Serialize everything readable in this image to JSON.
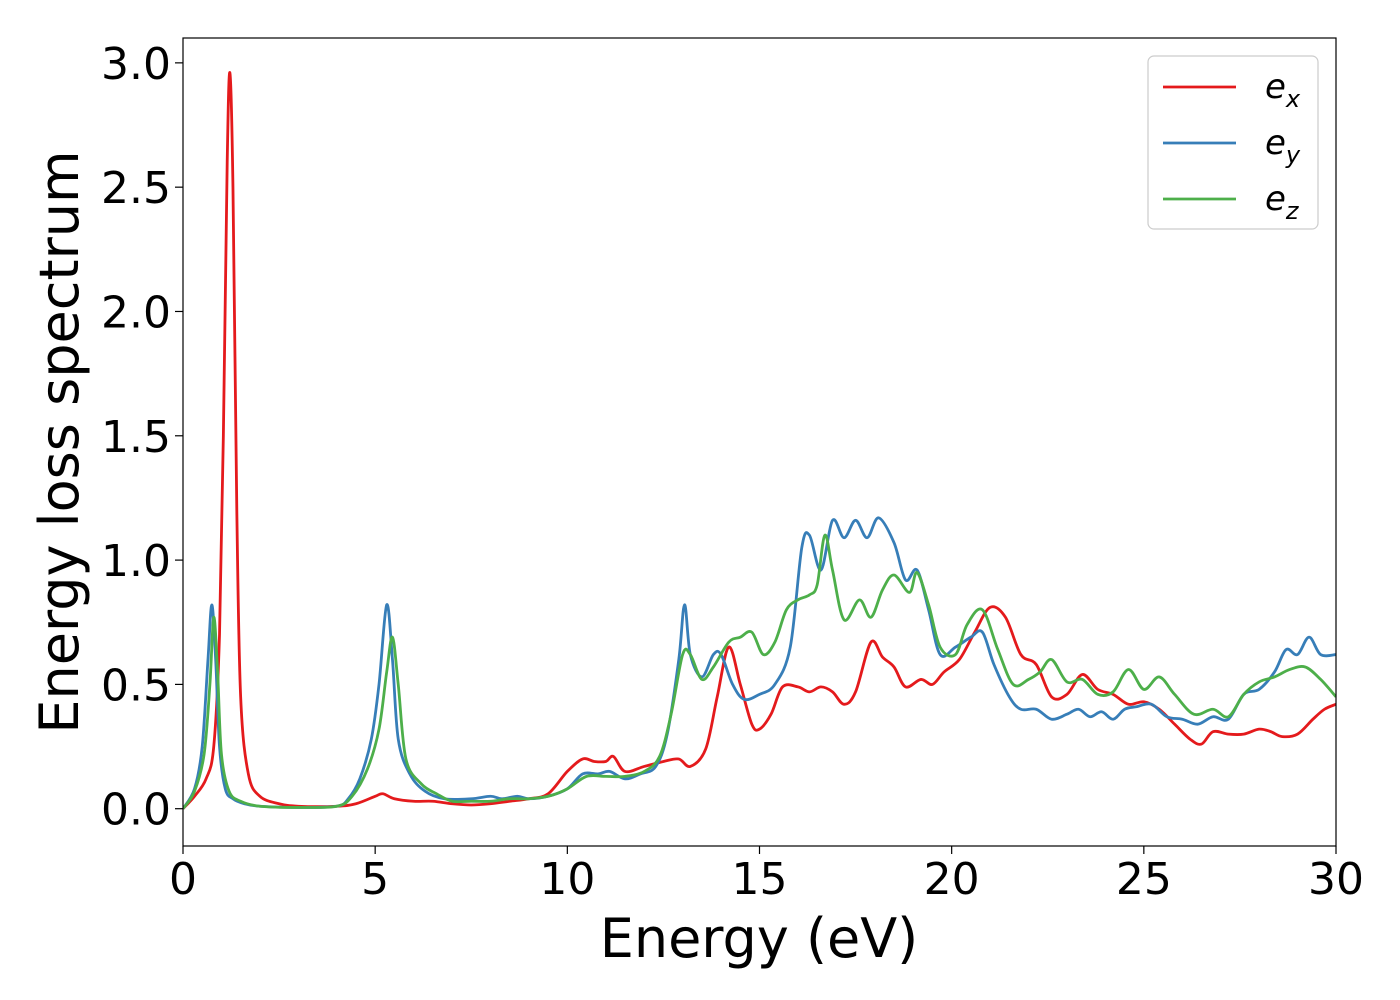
{
  "chart_data": {
    "type": "line",
    "xlabel": "Energy (eV)",
    "ylabel": "Energy loss spectrum",
    "xlim": [
      0,
      30
    ],
    "ylim": [
      -0.15,
      3.1
    ],
    "xticks": [
      0,
      5,
      10,
      15,
      20,
      25,
      30
    ],
    "xtick_labels": [
      "0",
      "5",
      "10",
      "15",
      "20",
      "25",
      "30"
    ],
    "yticks": [
      0.0,
      0.5,
      1.0,
      1.5,
      2.0,
      2.5,
      3.0
    ],
    "ytick_labels": [
      "0.0",
      "0.5",
      "1.0",
      "1.5",
      "2.0",
      "2.5",
      "3.0"
    ],
    "grid": false,
    "legend_position": "top-right",
    "series": [
      {
        "name": "e",
        "sub": "x",
        "color": "#e41a1c",
        "points": [
          [
            0,
            0.0
          ],
          [
            0.3,
            0.05
          ],
          [
            0.6,
            0.12
          ],
          [
            0.8,
            0.25
          ],
          [
            0.95,
            0.7
          ],
          [
            1.05,
            1.5
          ],
          [
            1.15,
            2.6
          ],
          [
            1.22,
            2.96
          ],
          [
            1.3,
            2.5
          ],
          [
            1.4,
            1.2
          ],
          [
            1.5,
            0.45
          ],
          [
            1.7,
            0.14
          ],
          [
            2.0,
            0.05
          ],
          [
            2.5,
            0.02
          ],
          [
            3.0,
            0.01
          ],
          [
            4.0,
            0.01
          ],
          [
            4.5,
            0.02
          ],
          [
            5.0,
            0.05
          ],
          [
            5.2,
            0.06
          ],
          [
            5.5,
            0.04
          ],
          [
            6.0,
            0.03
          ],
          [
            6.5,
            0.03
          ],
          [
            7.0,
            0.02
          ],
          [
            7.5,
            0.015
          ],
          [
            8.0,
            0.02
          ],
          [
            8.5,
            0.03
          ],
          [
            9.0,
            0.04
          ],
          [
            9.5,
            0.06
          ],
          [
            10.0,
            0.15
          ],
          [
            10.4,
            0.2
          ],
          [
            10.7,
            0.19
          ],
          [
            11.0,
            0.19
          ],
          [
            11.2,
            0.21
          ],
          [
            11.5,
            0.15
          ],
          [
            12.0,
            0.17
          ],
          [
            12.5,
            0.19
          ],
          [
            12.9,
            0.2
          ],
          [
            13.2,
            0.17
          ],
          [
            13.6,
            0.24
          ],
          [
            13.9,
            0.45
          ],
          [
            14.2,
            0.65
          ],
          [
            14.5,
            0.5
          ],
          [
            14.8,
            0.34
          ],
          [
            15.0,
            0.32
          ],
          [
            15.3,
            0.38
          ],
          [
            15.6,
            0.49
          ],
          [
            16.0,
            0.49
          ],
          [
            16.3,
            0.47
          ],
          [
            16.6,
            0.49
          ],
          [
            16.9,
            0.47
          ],
          [
            17.2,
            0.42
          ],
          [
            17.5,
            0.47
          ],
          [
            17.9,
            0.67
          ],
          [
            18.2,
            0.61
          ],
          [
            18.5,
            0.57
          ],
          [
            18.8,
            0.49
          ],
          [
            19.2,
            0.52
          ],
          [
            19.5,
            0.5
          ],
          [
            19.8,
            0.55
          ],
          [
            20.2,
            0.6
          ],
          [
            20.6,
            0.71
          ],
          [
            21.0,
            0.81
          ],
          [
            21.4,
            0.77
          ],
          [
            21.8,
            0.62
          ],
          [
            22.2,
            0.58
          ],
          [
            22.6,
            0.45
          ],
          [
            23.0,
            0.46
          ],
          [
            23.4,
            0.54
          ],
          [
            23.8,
            0.48
          ],
          [
            24.2,
            0.46
          ],
          [
            24.6,
            0.42
          ],
          [
            25.0,
            0.43
          ],
          [
            25.4,
            0.4
          ],
          [
            25.8,
            0.34
          ],
          [
            26.2,
            0.28
          ],
          [
            26.5,
            0.26
          ],
          [
            26.8,
            0.31
          ],
          [
            27.2,
            0.3
          ],
          [
            27.6,
            0.3
          ],
          [
            28.0,
            0.32
          ],
          [
            28.3,
            0.31
          ],
          [
            28.6,
            0.29
          ],
          [
            29.0,
            0.3
          ],
          [
            29.4,
            0.36
          ],
          [
            29.7,
            0.4
          ],
          [
            30.0,
            0.42
          ]
        ]
      },
      {
        "name": "e",
        "sub": "y",
        "color": "#377eb8",
        "points": [
          [
            0,
            0.0
          ],
          [
            0.3,
            0.08
          ],
          [
            0.5,
            0.25
          ],
          [
            0.65,
            0.6
          ],
          [
            0.75,
            0.82
          ],
          [
            0.85,
            0.6
          ],
          [
            0.95,
            0.25
          ],
          [
            1.1,
            0.08
          ],
          [
            1.3,
            0.04
          ],
          [
            1.6,
            0.02
          ],
          [
            2.0,
            0.01
          ],
          [
            3.0,
            0.005
          ],
          [
            4.0,
            0.01
          ],
          [
            4.3,
            0.04
          ],
          [
            4.6,
            0.12
          ],
          [
            4.9,
            0.28
          ],
          [
            5.1,
            0.5
          ],
          [
            5.3,
            0.82
          ],
          [
            5.45,
            0.6
          ],
          [
            5.6,
            0.28
          ],
          [
            5.9,
            0.14
          ],
          [
            6.3,
            0.07
          ],
          [
            6.8,
            0.04
          ],
          [
            7.5,
            0.04
          ],
          [
            8.0,
            0.05
          ],
          [
            8.3,
            0.04
          ],
          [
            8.7,
            0.05
          ],
          [
            9.0,
            0.04
          ],
          [
            9.5,
            0.05
          ],
          [
            10.0,
            0.08
          ],
          [
            10.4,
            0.14
          ],
          [
            10.8,
            0.14
          ],
          [
            11.1,
            0.15
          ],
          [
            11.5,
            0.12
          ],
          [
            11.9,
            0.14
          ],
          [
            12.3,
            0.17
          ],
          [
            12.6,
            0.3
          ],
          [
            12.9,
            0.6
          ],
          [
            13.05,
            0.82
          ],
          [
            13.2,
            0.62
          ],
          [
            13.5,
            0.53
          ],
          [
            13.8,
            0.62
          ],
          [
            14.0,
            0.62
          ],
          [
            14.3,
            0.5
          ],
          [
            14.6,
            0.44
          ],
          [
            15.0,
            0.46
          ],
          [
            15.4,
            0.5
          ],
          [
            15.8,
            0.65
          ],
          [
            16.1,
            1.05
          ],
          [
            16.3,
            1.1
          ],
          [
            16.6,
            0.96
          ],
          [
            16.9,
            1.16
          ],
          [
            17.2,
            1.09
          ],
          [
            17.5,
            1.16
          ],
          [
            17.8,
            1.09
          ],
          [
            18.1,
            1.17
          ],
          [
            18.5,
            1.07
          ],
          [
            18.8,
            0.92
          ],
          [
            19.1,
            0.96
          ],
          [
            19.4,
            0.8
          ],
          [
            19.7,
            0.62
          ],
          [
            20.1,
            0.65
          ],
          [
            20.5,
            0.69
          ],
          [
            20.8,
            0.71
          ],
          [
            21.1,
            0.58
          ],
          [
            21.5,
            0.45
          ],
          [
            21.8,
            0.4
          ],
          [
            22.2,
            0.4
          ],
          [
            22.6,
            0.36
          ],
          [
            23.0,
            0.38
          ],
          [
            23.3,
            0.4
          ],
          [
            23.6,
            0.37
          ],
          [
            23.9,
            0.39
          ],
          [
            24.2,
            0.36
          ],
          [
            24.5,
            0.4
          ],
          [
            24.8,
            0.41
          ],
          [
            25.2,
            0.42
          ],
          [
            25.6,
            0.37
          ],
          [
            26.0,
            0.36
          ],
          [
            26.4,
            0.34
          ],
          [
            26.8,
            0.37
          ],
          [
            27.2,
            0.36
          ],
          [
            27.6,
            0.46
          ],
          [
            28.0,
            0.48
          ],
          [
            28.4,
            0.55
          ],
          [
            28.7,
            0.64
          ],
          [
            29.0,
            0.62
          ],
          [
            29.3,
            0.69
          ],
          [
            29.6,
            0.62
          ],
          [
            30.0,
            0.62
          ]
        ]
      },
      {
        "name": "e",
        "sub": "z",
        "color": "#4daf4a",
        "points": [
          [
            0,
            0.0
          ],
          [
            0.3,
            0.07
          ],
          [
            0.55,
            0.22
          ],
          [
            0.7,
            0.5
          ],
          [
            0.8,
            0.77
          ],
          [
            0.9,
            0.55
          ],
          [
            1.0,
            0.22
          ],
          [
            1.2,
            0.07
          ],
          [
            1.5,
            0.03
          ],
          [
            2.0,
            0.01
          ],
          [
            3.0,
            0.005
          ],
          [
            4.0,
            0.01
          ],
          [
            4.4,
            0.05
          ],
          [
            4.8,
            0.16
          ],
          [
            5.1,
            0.32
          ],
          [
            5.3,
            0.55
          ],
          [
            5.45,
            0.69
          ],
          [
            5.6,
            0.5
          ],
          [
            5.8,
            0.2
          ],
          [
            6.2,
            0.1
          ],
          [
            6.6,
            0.06
          ],
          [
            7.0,
            0.03
          ],
          [
            7.5,
            0.03
          ],
          [
            8.0,
            0.03
          ],
          [
            8.5,
            0.04
          ],
          [
            9.0,
            0.04
          ],
          [
            9.5,
            0.05
          ],
          [
            10.0,
            0.08
          ],
          [
            10.5,
            0.13
          ],
          [
            11.0,
            0.13
          ],
          [
            11.5,
            0.13
          ],
          [
            12.0,
            0.15
          ],
          [
            12.4,
            0.21
          ],
          [
            12.7,
            0.38
          ],
          [
            13.0,
            0.62
          ],
          [
            13.2,
            0.62
          ],
          [
            13.5,
            0.52
          ],
          [
            13.8,
            0.57
          ],
          [
            14.2,
            0.67
          ],
          [
            14.5,
            0.69
          ],
          [
            14.8,
            0.71
          ],
          [
            15.1,
            0.62
          ],
          [
            15.4,
            0.67
          ],
          [
            15.7,
            0.8
          ],
          [
            16.0,
            0.84
          ],
          [
            16.3,
            0.86
          ],
          [
            16.5,
            0.9
          ],
          [
            16.7,
            1.1
          ],
          [
            16.9,
            0.96
          ],
          [
            17.2,
            0.76
          ],
          [
            17.6,
            0.84
          ],
          [
            17.9,
            0.77
          ],
          [
            18.2,
            0.88
          ],
          [
            18.5,
            0.94
          ],
          [
            18.9,
            0.87
          ],
          [
            19.1,
            0.95
          ],
          [
            19.4,
            0.82
          ],
          [
            19.7,
            0.65
          ],
          [
            20.1,
            0.62
          ],
          [
            20.4,
            0.74
          ],
          [
            20.8,
            0.8
          ],
          [
            21.2,
            0.64
          ],
          [
            21.6,
            0.5
          ],
          [
            22.0,
            0.52
          ],
          [
            22.3,
            0.55
          ],
          [
            22.6,
            0.6
          ],
          [
            23.0,
            0.51
          ],
          [
            23.4,
            0.52
          ],
          [
            23.8,
            0.46
          ],
          [
            24.2,
            0.47
          ],
          [
            24.6,
            0.56
          ],
          [
            25.0,
            0.48
          ],
          [
            25.4,
            0.53
          ],
          [
            25.8,
            0.46
          ],
          [
            26.3,
            0.38
          ],
          [
            26.8,
            0.4
          ],
          [
            27.2,
            0.37
          ],
          [
            27.6,
            0.46
          ],
          [
            28.0,
            0.51
          ],
          [
            28.4,
            0.53
          ],
          [
            28.8,
            0.56
          ],
          [
            29.2,
            0.57
          ],
          [
            29.6,
            0.52
          ],
          [
            30.0,
            0.45
          ]
        ]
      }
    ]
  }
}
